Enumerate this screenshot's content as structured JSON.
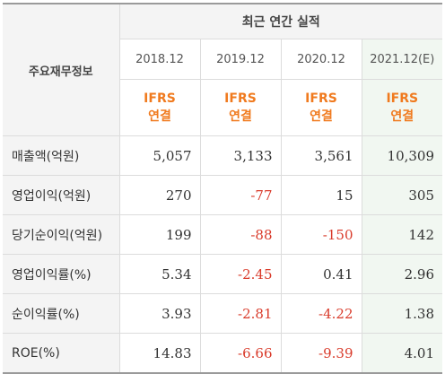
{
  "table": {
    "title": "최근 연간 실적",
    "label_header": "주요재무정보",
    "columns": [
      {
        "year": "2018.12",
        "standard_line1": "IFRS",
        "standard_line2": "연결",
        "estimate": false
      },
      {
        "year": "2019.12",
        "standard_line1": "IFRS",
        "standard_line2": "연결",
        "estimate": false
      },
      {
        "year": "2020.12",
        "standard_line1": "IFRS",
        "standard_line2": "연결",
        "estimate": false
      },
      {
        "year": "2021.12(E)",
        "standard_line1": "IFRS",
        "standard_line2": "연결",
        "estimate": true
      }
    ],
    "rows": [
      {
        "label": "매출액(억원)",
        "values": [
          "5,057",
          "3,133",
          "3,561",
          "10,309"
        ]
      },
      {
        "label": "영업이익(억원)",
        "values": [
          "270",
          "-77",
          "15",
          "305"
        ]
      },
      {
        "label": "당기순이익(억원)",
        "values": [
          "199",
          "-88",
          "-150",
          "142"
        ]
      },
      {
        "label": "영업이익률(%)",
        "values": [
          "5.34",
          "-2.45",
          "0.41",
          "2.96"
        ]
      },
      {
        "label": "순이익률(%)",
        "values": [
          "3.93",
          "-2.81",
          "-4.22",
          "1.38"
        ]
      },
      {
        "label": "ROE(%)",
        "values": [
          "14.83",
          "-6.66",
          "-9.39",
          "4.01"
        ]
      }
    ],
    "colors": {
      "ifrs_orange": "#f07a1e",
      "negative_red": "#d93b2b",
      "estimate_bg": "#f1f7f1",
      "header_bg": "#f4f4f4"
    }
  }
}
